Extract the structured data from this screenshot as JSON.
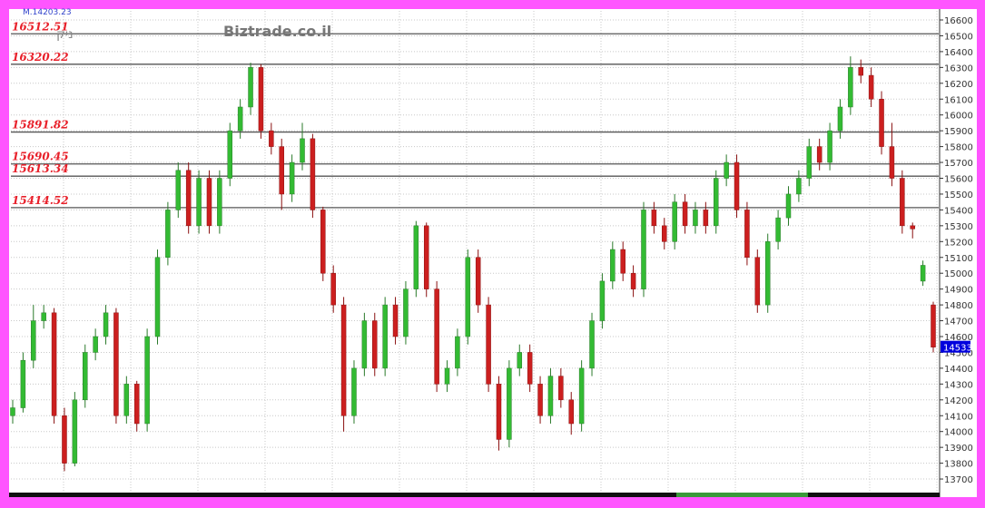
{
  "header": {
    "top_readout": "M.14203.23",
    "hebrew_label": "ניק",
    "watermark": "Biztrade.co.il"
  },
  "colors": {
    "up": "#33bb33",
    "down": "#cc1f1f",
    "level_text": "#e8202a",
    "price_box": "#0000dd",
    "border": "#ff55ff"
  },
  "chart_data": {
    "type": "candlestick",
    "title": "",
    "ylim": [
      13650,
      16650
    ],
    "y_ticks": [
      13700,
      13800,
      13900,
      14000,
      14100,
      14200,
      14300,
      14400,
      14500,
      14600,
      14700,
      14800,
      14900,
      15000,
      15100,
      15200,
      15300,
      15400,
      15500,
      15600,
      15700,
      15800,
      15900,
      16000,
      16100,
      16200,
      16300,
      16400,
      16500,
      16600
    ],
    "grid": true,
    "levels": [
      16512.51,
      16320.22,
      15891.82,
      15690.45,
      15613.34,
      15414.52
    ],
    "level_labels": [
      "16512.51",
      "16320.22",
      "15891.82",
      "15690.45",
      "15613.34",
      "15414.52"
    ],
    "last_price": "14533",
    "ohlc": [
      [
        14100,
        14200,
        14050,
        14150
      ],
      [
        14150,
        14500,
        14120,
        14450
      ],
      [
        14450,
        14800,
        14400,
        14700
      ],
      [
        14700,
        14800,
        14650,
        14750
      ],
      [
        14750,
        14780,
        14050,
        14100
      ],
      [
        14100,
        14150,
        13750,
        13800
      ],
      [
        13800,
        14250,
        13780,
        14200
      ],
      [
        14200,
        14550,
        14150,
        14500
      ],
      [
        14500,
        14650,
        14450,
        14600
      ],
      [
        14600,
        14800,
        14550,
        14750
      ],
      [
        14750,
        14780,
        14050,
        14100
      ],
      [
        14100,
        14350,
        14050,
        14300
      ],
      [
        14300,
        14320,
        14000,
        14050
      ],
      [
        14050,
        14650,
        14000,
        14600
      ],
      [
        14600,
        15150,
        14550,
        15100
      ],
      [
        15100,
        15450,
        15050,
        15400
      ],
      [
        15400,
        15700,
        15350,
        15650
      ],
      [
        15650,
        15700,
        15250,
        15300
      ],
      [
        15300,
        15650,
        15250,
        15600
      ],
      [
        15600,
        15650,
        15250,
        15300
      ],
      [
        15300,
        15650,
        15250,
        15600
      ],
      [
        15600,
        15950,
        15550,
        15900
      ],
      [
        15900,
        16100,
        15850,
        16050
      ],
      [
        16050,
        16330,
        16000,
        16300
      ],
      [
        16300,
        16320,
        15850,
        15900
      ],
      [
        15900,
        15950,
        15750,
        15800
      ],
      [
        15800,
        15850,
        15400,
        15500
      ],
      [
        15500,
        15750,
        15450,
        15700
      ],
      [
        15700,
        15950,
        15650,
        15850
      ],
      [
        15850,
        15880,
        15350,
        15400
      ],
      [
        15400,
        15420,
        14950,
        15000
      ],
      [
        15000,
        15050,
        14750,
        14800
      ],
      [
        14800,
        14850,
        14000,
        14100
      ],
      [
        14100,
        14450,
        14050,
        14400
      ],
      [
        14400,
        14750,
        14350,
        14700
      ],
      [
        14700,
        14750,
        14350,
        14400
      ],
      [
        14400,
        14850,
        14350,
        14800
      ],
      [
        14800,
        14850,
        14550,
        14600
      ],
      [
        14600,
        14950,
        14550,
        14900
      ],
      [
        14900,
        15330,
        14850,
        15300
      ],
      [
        15300,
        15320,
        14850,
        14900
      ],
      [
        14900,
        14950,
        14250,
        14300
      ],
      [
        14300,
        14450,
        14250,
        14400
      ],
      [
        14400,
        14650,
        14350,
        14600
      ],
      [
        14600,
        15150,
        14550,
        15100
      ],
      [
        15100,
        15150,
        14750,
        14800
      ],
      [
        14800,
        14850,
        14250,
        14300
      ],
      [
        14300,
        14350,
        13880,
        13950
      ],
      [
        13950,
        14450,
        13900,
        14400
      ],
      [
        14400,
        14550,
        14350,
        14500
      ],
      [
        14500,
        14550,
        14250,
        14300
      ],
      [
        14300,
        14350,
        14050,
        14100
      ],
      [
        14100,
        14400,
        14050,
        14350
      ],
      [
        14350,
        14400,
        14150,
        14200
      ],
      [
        14200,
        14250,
        13980,
        14050
      ],
      [
        14050,
        14450,
        14000,
        14400
      ],
      [
        14400,
        14750,
        14350,
        14700
      ],
      [
        14700,
        15000,
        14650,
        14950
      ],
      [
        14950,
        15200,
        14900,
        15150
      ],
      [
        15150,
        15200,
        14950,
        15000
      ],
      [
        15000,
        15050,
        14850,
        14900
      ],
      [
        14900,
        15450,
        14850,
        15400
      ],
      [
        15400,
        15450,
        15250,
        15300
      ],
      [
        15300,
        15350,
        15150,
        15200
      ],
      [
        15200,
        15500,
        15150,
        15450
      ],
      [
        15450,
        15500,
        15250,
        15300
      ],
      [
        15300,
        15450,
        15250,
        15400
      ],
      [
        15400,
        15450,
        15250,
        15300
      ],
      [
        15300,
        15650,
        15250,
        15600
      ],
      [
        15600,
        15750,
        15550,
        15700
      ],
      [
        15700,
        15750,
        15350,
        15400
      ],
      [
        15400,
        15450,
        15050,
        15100
      ],
      [
        15100,
        15150,
        14750,
        14800
      ],
      [
        14800,
        15250,
        14750,
        15200
      ],
      [
        15200,
        15400,
        15150,
        15350
      ],
      [
        15350,
        15550,
        15300,
        15500
      ],
      [
        15500,
        15650,
        15450,
        15600
      ],
      [
        15600,
        15850,
        15550,
        15800
      ],
      [
        15800,
        15850,
        15650,
        15700
      ],
      [
        15700,
        15950,
        15650,
        15900
      ],
      [
        15900,
        16100,
        15850,
        16050
      ],
      [
        16050,
        16370,
        16000,
        16300
      ],
      [
        16300,
        16350,
        16200,
        16250
      ],
      [
        16250,
        16300,
        16050,
        16100
      ],
      [
        16100,
        16150,
        15750,
        15800
      ],
      [
        15800,
        15950,
        15550,
        15600
      ],
      [
        15600,
        15650,
        15250,
        15300
      ],
      [
        15300,
        15320,
        15220,
        15280
      ],
      [
        14950,
        15080,
        14920,
        15050
      ],
      [
        14800,
        14820,
        14500,
        14533
      ]
    ]
  }
}
